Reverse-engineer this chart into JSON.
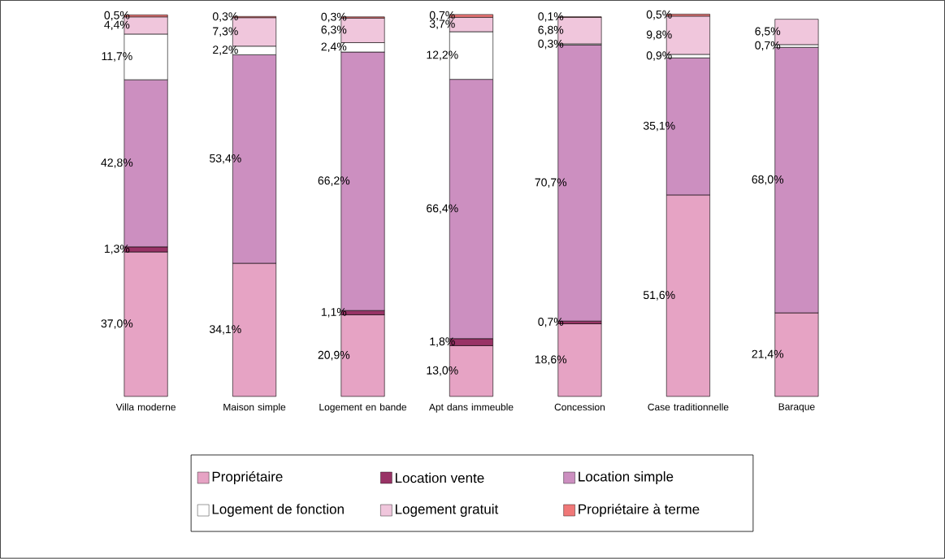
{
  "chart_data": {
    "type": "bar",
    "stacked": true,
    "legend": "bottom",
    "categories": [
      "Villa moderne",
      "Maison simple",
      "Logement en bande",
      "Apt dans immeuble",
      "Concession",
      "Case traditionnelle",
      "Baraque"
    ],
    "series": [
      {
        "name": "Propriétaire",
        "color": "#e6a3c4",
        "values": [
          37.0,
          34.1,
          20.9,
          13.0,
          18.6,
          51.6,
          21.4
        ],
        "value_labels": [
          "37,0%",
          "34,1%",
          "20,9%",
          "13,0%",
          "18,6%",
          "51,6%",
          "21,4%"
        ]
      },
      {
        "name": "Location vente",
        "color": "#993366",
        "values": [
          1.3,
          null,
          1.1,
          1.8,
          0.7,
          null,
          null
        ],
        "value_labels": [
          "1,3%",
          null,
          "1,1%",
          "1,8%",
          "0,7%",
          null,
          null
        ]
      },
      {
        "name": "Location simple",
        "color": "#cc8fc0",
        "values": [
          42.8,
          53.4,
          66.2,
          66.4,
          70.7,
          35.1,
          68.0
        ],
        "value_labels": [
          "42,8%",
          "53,4%",
          "66,2%",
          "66,4%",
          "70,7%",
          "35,1%",
          "68,0%"
        ]
      },
      {
        "name": "Logement de fonction",
        "color": "#ffffff",
        "values": [
          11.7,
          2.2,
          2.4,
          12.2,
          0.3,
          0.9,
          0.7
        ],
        "value_labels": [
          "11,7%",
          "2,2%",
          "2,4%",
          "12,2%",
          "0,3%",
          "0,9%",
          "0,7%"
        ]
      },
      {
        "name": "Logement gratuit",
        "color": "#f0c6dc",
        "values": [
          4.4,
          7.3,
          6.3,
          3.7,
          6.8,
          9.8,
          6.5
        ],
        "value_labels": [
          "4,4%",
          "7,3%",
          "6,3%",
          "3,7%",
          "6,8%",
          "9,8%",
          "6,5%"
        ]
      },
      {
        "name": "Propriétaire à terme",
        "color": "#f07878",
        "values": [
          0.5,
          0.3,
          0.3,
          0.7,
          0.1,
          0.5,
          null
        ],
        "value_labels": [
          "0,5%",
          "0,3%",
          "0,3%",
          "0,7%",
          "0,1%",
          "0,5%",
          null
        ]
      }
    ]
  }
}
